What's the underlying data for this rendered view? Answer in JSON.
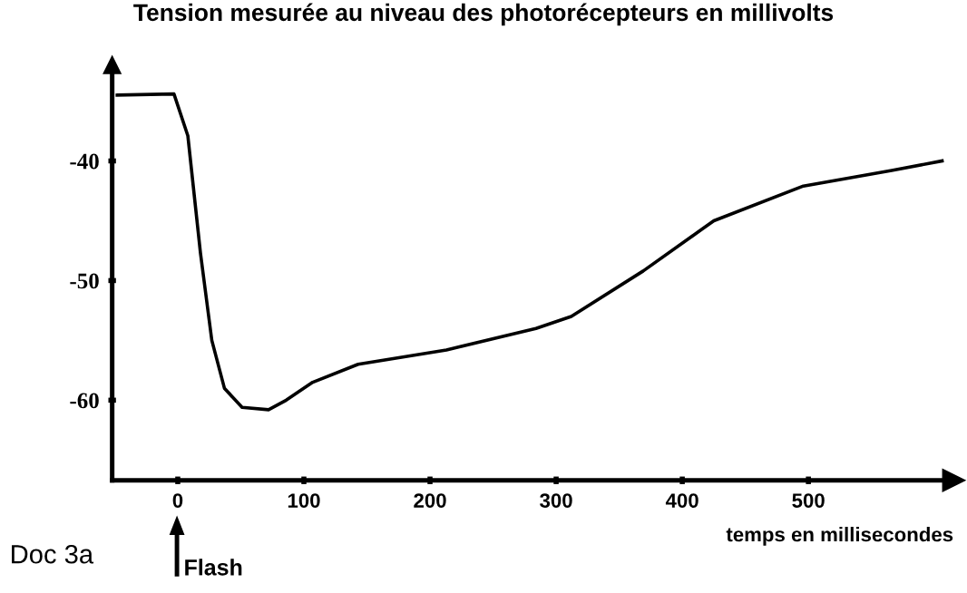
{
  "chart_data": {
    "type": "line",
    "title": "Tension mesurée au niveau des photorécepteurs en millivolts",
    "xlabel": "temps en millisecondes",
    "x": [
      -48,
      -3,
      8,
      18,
      27,
      37,
      51,
      72,
      86,
      107,
      143,
      213,
      284,
      312,
      369,
      425,
      496,
      566,
      606
    ],
    "series": [
      {
        "color": "#000000",
        "values": [
          -34.5,
          -34.4,
          -37.9,
          -47.7,
          -55,
          -59,
          -60.6,
          -60.8,
          -60,
          -58.5,
          -57,
          -55.8,
          -54,
          -53,
          -49.2,
          -45,
          -42.1,
          -40.8,
          -40
        ]
      }
    ],
    "xlim": [
      -52,
      615
    ],
    "ylim": [
      -66.7,
      -32
    ],
    "xticks": [
      0,
      100,
      200,
      300,
      400,
      500
    ],
    "yticks": [
      {
        "value": -40,
        "label": "-40"
      },
      {
        "value": -50,
        "label": "-50"
      },
      {
        "value": -60,
        "label": "-60"
      }
    ],
    "annotations": [
      "Doc 3a",
      "Flash"
    ],
    "grid": false,
    "legend": false,
    "marker": "none",
    "line_style": "solid"
  }
}
